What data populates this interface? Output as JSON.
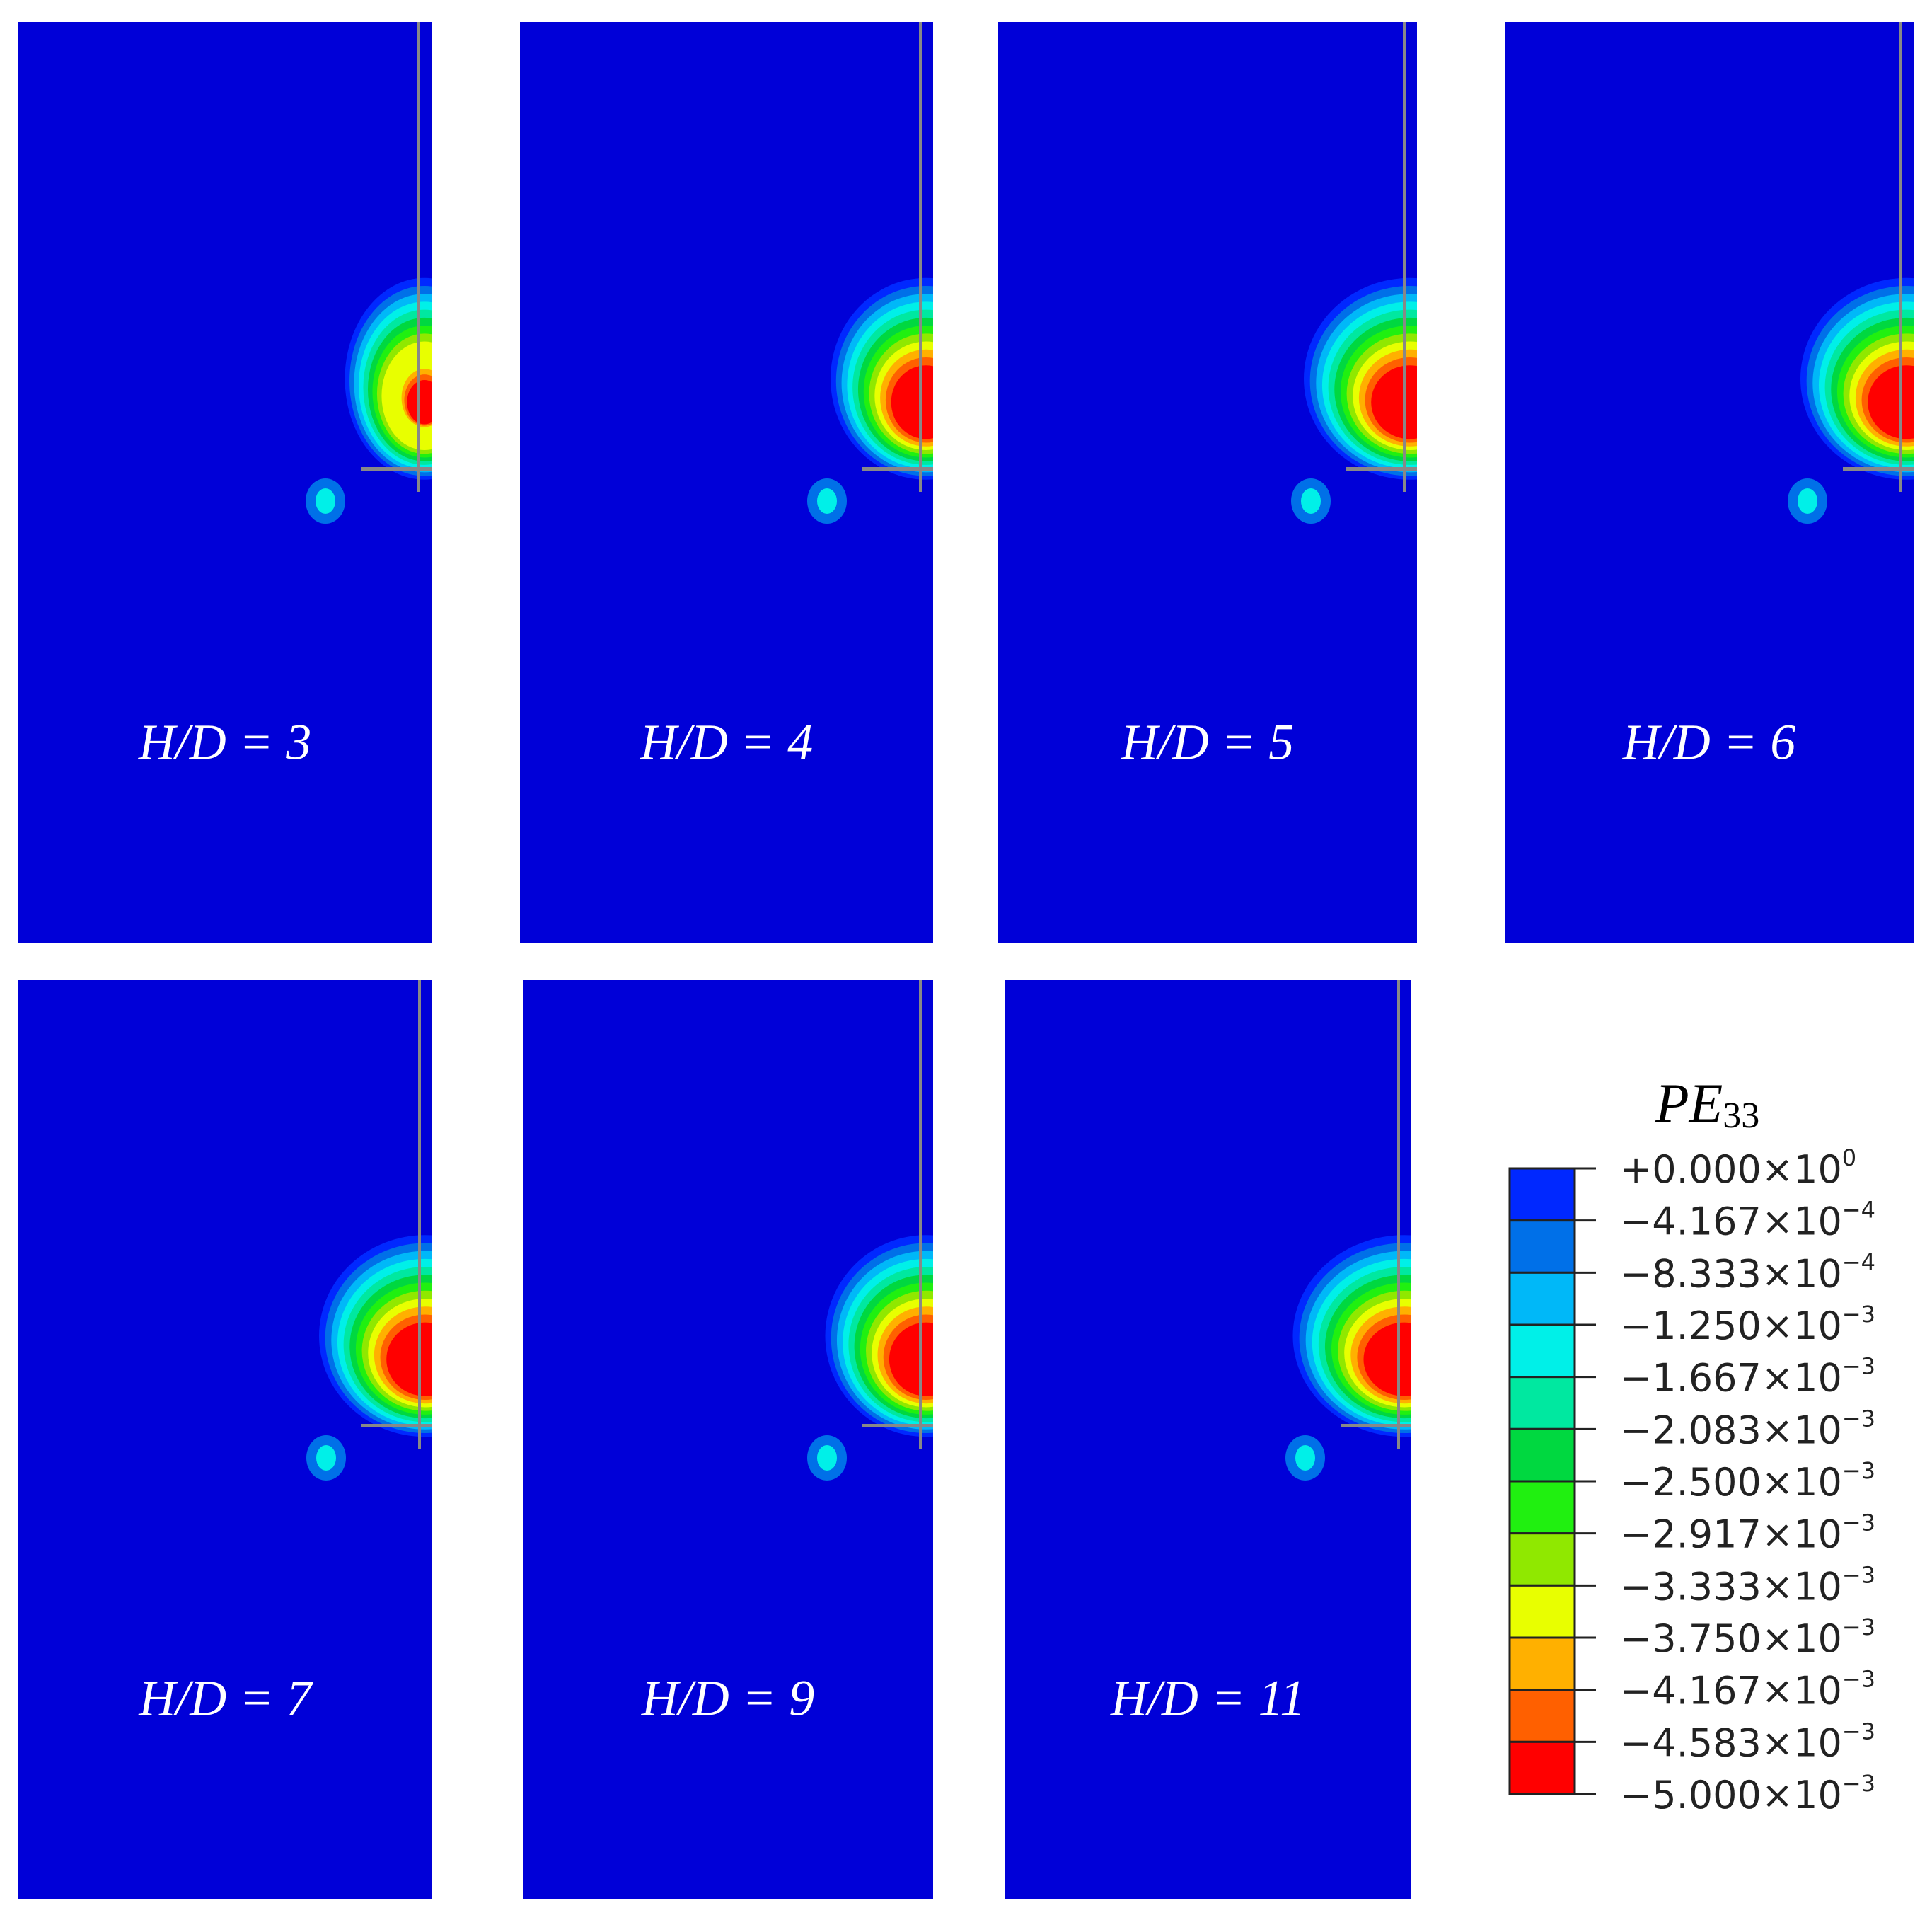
{
  "panels": [
    {
      "label": "H/D = 3"
    },
    {
      "label": "H/D = 4"
    },
    {
      "label": "H/D = 5"
    },
    {
      "label": "H/D = 6"
    },
    {
      "label": "H/D = 7"
    },
    {
      "label": "H/D = 9"
    },
    {
      "label": "H/D = 11"
    }
  ],
  "legend": {
    "symbol": "PE",
    "subscript": "33",
    "levels": [
      {
        "base": "+0.000×10",
        "exponent": "0"
      },
      {
        "base": "−4.167×10",
        "exponent": "−4"
      },
      {
        "base": "−8.333×10",
        "exponent": "−4"
      },
      {
        "base": "−1.250×10",
        "exponent": "−3"
      },
      {
        "base": "−1.667×10",
        "exponent": "−3"
      },
      {
        "base": "−2.083×10",
        "exponent": "−3"
      },
      {
        "base": "−2.500×10",
        "exponent": "−3"
      },
      {
        "base": "−2.917×10",
        "exponent": "−3"
      },
      {
        "base": "−3.333×10",
        "exponent": "−3"
      },
      {
        "base": "−3.750×10",
        "exponent": "−3"
      },
      {
        "base": "−4.167×10",
        "exponent": "−3"
      },
      {
        "base": "−4.583×10",
        "exponent": "−3"
      },
      {
        "base": "−5.000×10",
        "exponent": "−3"
      }
    ],
    "colors": [
      "#0000d8",
      "#0028ff",
      "#0070e8",
      "#00b8f8",
      "#00f0e8",
      "#00e8a0",
      "#00d840",
      "#20f010",
      "#90e800",
      "#e8ff00",
      "#ffb000",
      "#ff6000",
      "#ff0000"
    ]
  }
}
